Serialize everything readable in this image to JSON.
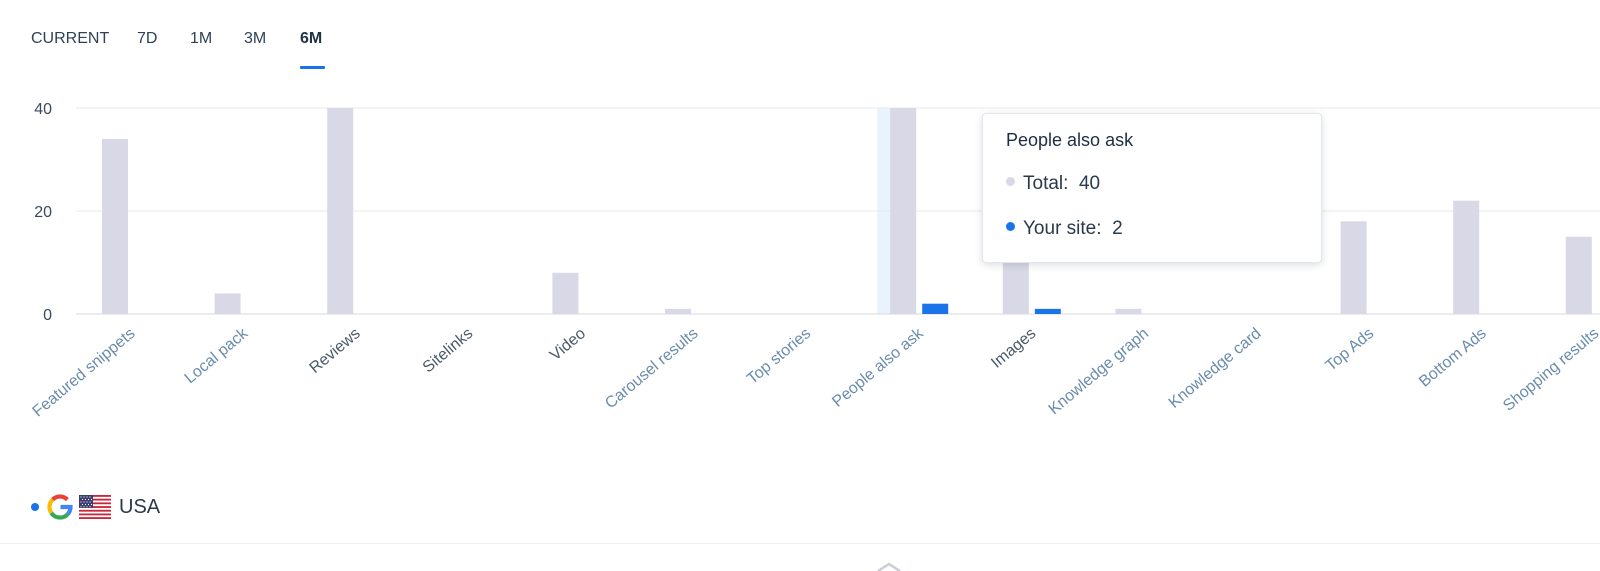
{
  "tabs": [
    {
      "label": "CURRENT",
      "active": false
    },
    {
      "label": "7D",
      "active": false
    },
    {
      "label": "1M",
      "active": false
    },
    {
      "label": "3M",
      "active": false
    },
    {
      "label": "6M",
      "active": true
    }
  ],
  "chart_data": {
    "type": "bar",
    "categories": [
      "Featured snippets",
      "Local pack",
      "Reviews",
      "Sitelinks",
      "Video",
      "Carousel results",
      "Top stories",
      "People also ask",
      "Images",
      "Knowledge graph",
      "Knowledge card",
      "Top Ads",
      "Bottom Ads",
      "Shopping results"
    ],
    "series": [
      {
        "name": "Total",
        "color": "#d8d8e6",
        "values": [
          34,
          4,
          40,
          0,
          8,
          1,
          0,
          40,
          12,
          1,
          0,
          18,
          22,
          15
        ]
      },
      {
        "name": "Your site",
        "color": "#1a73e8",
        "values": [
          0,
          0,
          0,
          0,
          0,
          0,
          0,
          2,
          1,
          0,
          0,
          0,
          0,
          0
        ]
      }
    ],
    "y_ticks": [
      "0",
      "20",
      "40"
    ],
    "ylim": [
      0,
      40
    ],
    "grid": true,
    "highlighted_category": "People also ask",
    "highlight_color": "#eaf3fd"
  },
  "tooltip": {
    "title": "People also ask",
    "rows": [
      {
        "label": "Total:",
        "value": "40",
        "color": "#d8d8e6"
      },
      {
        "label": "Your site:",
        "value": "2",
        "color": "#1a73e8"
      }
    ]
  },
  "legend": {
    "search_engine_icon": "google-g-icon",
    "flag_icon": "us-flag-icon",
    "country": "USA",
    "dot_color": "#1a73e8"
  },
  "colors": {
    "accent": "#1a73e8",
    "axis_text": "#3a4a5c",
    "category_text_dark": "#4a5a6a",
    "category_text_light": "#6a8cac"
  }
}
